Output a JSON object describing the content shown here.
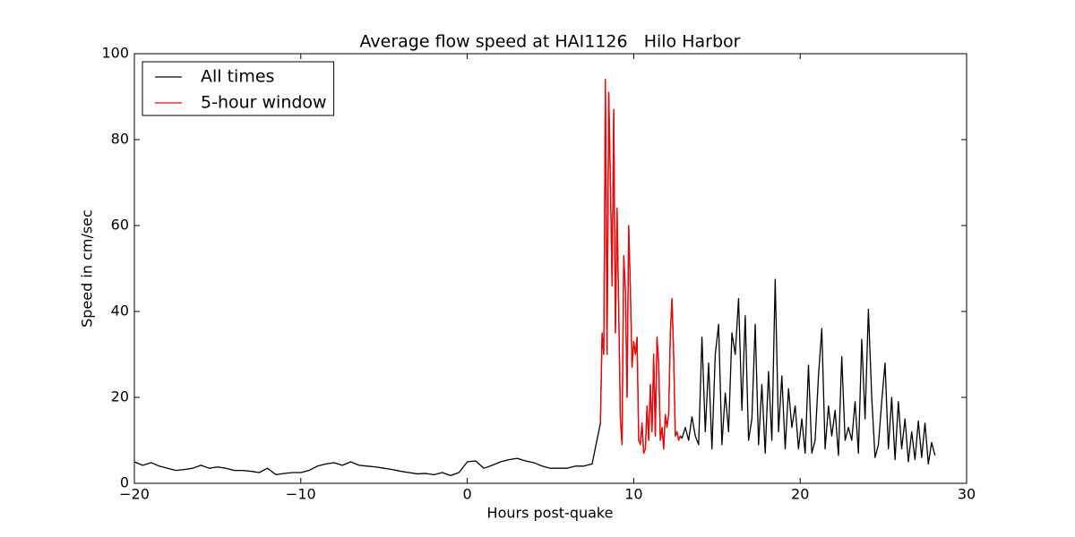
{
  "chart_data": {
    "type": "line",
    "title": "Average flow speed at HAI1126   Hilo Harbor",
    "xlabel": "Hours post-quake",
    "ylabel": "Speed in cm/sec",
    "xlim": [
      -20,
      30
    ],
    "ylim": [
      0,
      100
    ],
    "xticks": [
      {
        "value": -20,
        "label": "−20"
      },
      {
        "value": -10,
        "label": "−10"
      },
      0,
      10,
      20,
      30
    ],
    "yticks": [
      0,
      20,
      40,
      60,
      80,
      100
    ],
    "legend": "upper left",
    "grid": false,
    "series": [
      {
        "name": "All times",
        "color": "#000000",
        "x": [
          -20,
          -19.5,
          -19,
          -18.5,
          -18,
          -17.5,
          -17,
          -16.5,
          -16,
          -15.5,
          -15,
          -14.5,
          -14,
          -13.5,
          -13,
          -12.5,
          -12,
          -11.5,
          -11,
          -10.5,
          -10,
          -9.5,
          -9,
          -8.5,
          -8,
          -7.5,
          -7,
          -6.5,
          -6,
          -5.5,
          -5,
          -4.5,
          -4,
          -3.5,
          -3,
          -2.5,
          -2,
          -1.5,
          -1,
          -0.5,
          0,
          0.5,
          1,
          1.5,
          2,
          2.5,
          3,
          3.5,
          4,
          4.5,
          5,
          5.5,
          6,
          6.5,
          7,
          7.5,
          8,
          8.1,
          8.2,
          8.3,
          8.4,
          8.5,
          8.6,
          8.7,
          8.8,
          8.9,
          9,
          9.1,
          9.2,
          9.3,
          9.4,
          9.5,
          9.6,
          9.7,
          9.8,
          9.9,
          10,
          10.1,
          10.2,
          10.3,
          10.4,
          10.5,
          10.6,
          10.7,
          10.8,
          10.9,
          11,
          11.1,
          11.2,
          11.3,
          11.4,
          11.5,
          11.6,
          11.7,
          11.8,
          11.9,
          12,
          12.1,
          12.2,
          12.3,
          12.4,
          12.5,
          12.6,
          12.7,
          12.8,
          12.9,
          13.1,
          13.3,
          13.5,
          13.7,
          13.9,
          14.1,
          14.3,
          14.5,
          14.7,
          14.9,
          15.1,
          15.3,
          15.5,
          15.7,
          15.9,
          16.1,
          16.3,
          16.5,
          16.7,
          16.9,
          17.1,
          17.3,
          17.5,
          17.7,
          17.9,
          18.1,
          18.3,
          18.5,
          18.7,
          18.9,
          19.1,
          19.3,
          19.5,
          19.7,
          19.9,
          20.1,
          20.3,
          20.5,
          20.7,
          20.9,
          21.1,
          21.3,
          21.5,
          21.7,
          21.9,
          22.1,
          22.3,
          22.5,
          22.7,
          22.9,
          23.1,
          23.3,
          23.5,
          23.7,
          23.9,
          24.1,
          24.3,
          24.5,
          24.7,
          24.9,
          25.1,
          25.3,
          25.5,
          25.7,
          25.9,
          26.1,
          26.3,
          26.5,
          26.7,
          26.9,
          27.1,
          27.3,
          27.5,
          27.7,
          27.9,
          28.1
        ],
        "values": [
          5,
          4.2,
          4.8,
          4,
          3.5,
          3,
          3.2,
          3.5,
          4.2,
          3.5,
          3.8,
          3.5,
          3,
          3,
          2.8,
          2.5,
          3.5,
          2,
          2.3,
          2.5,
          2.5,
          3,
          4,
          4.5,
          4.8,
          4.2,
          5,
          4.2,
          4,
          3.8,
          3.5,
          3.2,
          2.8,
          2.5,
          2.2,
          2.3,
          2,
          2.5,
          1.8,
          2.5,
          5,
          5.2,
          3.5,
          4.2,
          5,
          5.5,
          5.8,
          5.2,
          4.8,
          4,
          3.5,
          3.5,
          3.5,
          4,
          4,
          4.5,
          14,
          35,
          30,
          94,
          30,
          91,
          70,
          46,
          87,
          35,
          64,
          40,
          15,
          9,
          53,
          45,
          20,
          60,
          45,
          27,
          33,
          30,
          34,
          10,
          9,
          14,
          7,
          8,
          18,
          10,
          23,
          12,
          30,
          11,
          34,
          28,
          10,
          13,
          8,
          16,
          13,
          16,
          35,
          43,
          30,
          11,
          12,
          10,
          11,
          10.5,
          13,
          10,
          15.5,
          11,
          9,
          34,
          12,
          28,
          8,
          30,
          37,
          9,
          21,
          12,
          35,
          30,
          43,
          17,
          39,
          10,
          15,
          37,
          9,
          23,
          7,
          26,
          10,
          47.5,
          12,
          25,
          8,
          22,
          13,
          18,
          8,
          15,
          7,
          27.5,
          7,
          10,
          25,
          36,
          8,
          18,
          11,
          17,
          6.5,
          29.5,
          10,
          13,
          10,
          19,
          7,
          33.5,
          15,
          40.5,
          20,
          6,
          9,
          19,
          28,
          8,
          20,
          5.5,
          19,
          8,
          15,
          5,
          12,
          5.5,
          14.5,
          6,
          14,
          4.5,
          9.5,
          6.5
        ]
      },
      {
        "name": "5-hour window",
        "color": "#ff0000",
        "x": [
          8,
          8.1,
          8.2,
          8.3,
          8.4,
          8.5,
          8.6,
          8.7,
          8.8,
          8.9,
          9,
          9.1,
          9.2,
          9.3,
          9.4,
          9.5,
          9.6,
          9.7,
          9.8,
          9.9,
          10,
          10.1,
          10.2,
          10.3,
          10.4,
          10.5,
          10.6,
          10.7,
          10.8,
          10.9,
          11,
          11.1,
          11.2,
          11.3,
          11.4,
          11.5,
          11.6,
          11.7,
          11.8,
          11.9,
          12,
          12.1,
          12.2,
          12.3,
          12.4,
          12.5,
          12.6,
          12.7,
          12.8
        ],
        "values": [
          14,
          35,
          30,
          94,
          30,
          91,
          70,
          46,
          87,
          35,
          64,
          40,
          15,
          9,
          53,
          45,
          20,
          60,
          45,
          27,
          33,
          30,
          34,
          10,
          9,
          14,
          7,
          8,
          18,
          10,
          23,
          12,
          30,
          11,
          34,
          28,
          10,
          13,
          8,
          16,
          13,
          16,
          35,
          43,
          30,
          11,
          12,
          10,
          11
        ]
      }
    ]
  }
}
